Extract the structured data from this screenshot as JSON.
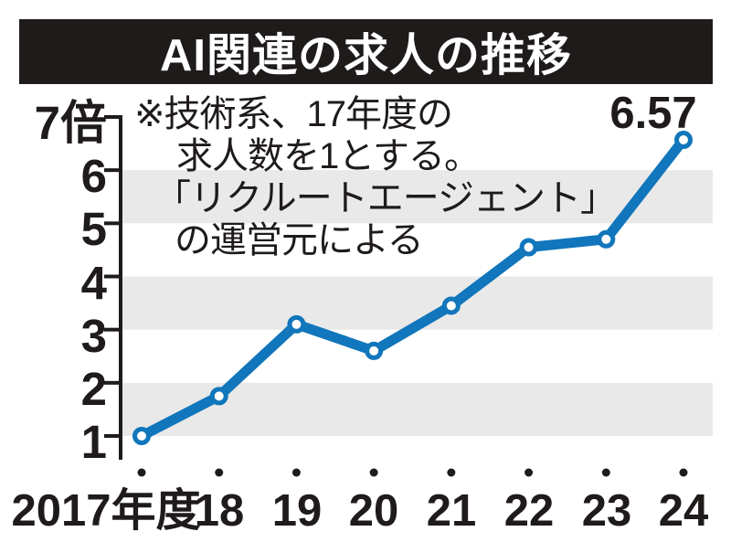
{
  "title": "AI関連の求人の推移",
  "note": {
    "lines": [
      "※技術系、17年度の",
      "求人数を1とする。",
      "「リクルートエージェント」",
      "の運営元による"
    ]
  },
  "chart_data": {
    "type": "line",
    "title": "AI関連の求人の推移",
    "note": "※技術系、17年度の求人数を1とする。「リクルートエージェント」の運営元による",
    "categories": [
      "2017年度",
      "18",
      "19",
      "20",
      "21",
      "22",
      "23",
      "24"
    ],
    "values": [
      1.0,
      1.75,
      3.1,
      2.6,
      3.45,
      4.55,
      4.7,
      6.57
    ],
    "unit_label": "倍",
    "y_ticks": [
      1,
      2,
      3,
      4,
      5,
      6,
      7
    ],
    "y_tick_labels": [
      "1",
      "2",
      "3",
      "4",
      "5",
      "6",
      "7倍"
    ],
    "ylim": [
      1,
      7
    ],
    "data_label": "6.57",
    "data_label_point": "24",
    "band_pairs": [
      [
        1,
        2
      ],
      [
        3,
        4
      ],
      [
        5,
        6
      ]
    ],
    "legend": "none",
    "grid": "alternating-horizontal-bands",
    "colors": {
      "line": "#1176bb",
      "marker_fill": "#ffffff",
      "band": "#e9e9e9",
      "axis": "#1f1b1b",
      "title_bg": "#1f1b1b",
      "title_text": "#ffffff"
    }
  }
}
